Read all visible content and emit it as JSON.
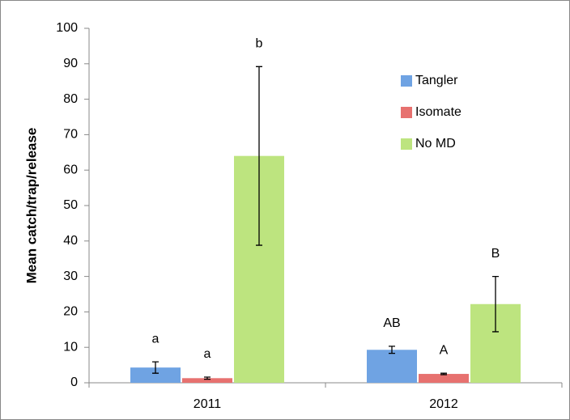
{
  "chart_data": {
    "type": "bar",
    "ylabel": "Mean catch/trap/release",
    "categories": [
      "2011",
      "2012"
    ],
    "series": [
      {
        "name": "Tangler",
        "color": "#6fa3e3",
        "values": [
          4.3,
          9.3
        ],
        "errors": [
          1.6,
          1.0
        ],
        "letters": [
          "a",
          "AB"
        ]
      },
      {
        "name": "Isomate",
        "color": "#e7716f",
        "values": [
          1.3,
          2.5
        ],
        "errors": [
          0.3,
          0.2
        ],
        "letters": [
          "a",
          "A"
        ]
      },
      {
        "name": "No MD",
        "color": "#bde47f",
        "values": [
          64,
          22.2
        ],
        "errors": [
          25.2,
          7.8
        ],
        "letters": [
          "b",
          "B"
        ]
      }
    ],
    "ylim": [
      0,
      100
    ],
    "yticks": [
      0,
      10,
      20,
      30,
      40,
      50,
      60,
      70,
      80,
      90,
      100
    ],
    "legend": "upper-right"
  }
}
